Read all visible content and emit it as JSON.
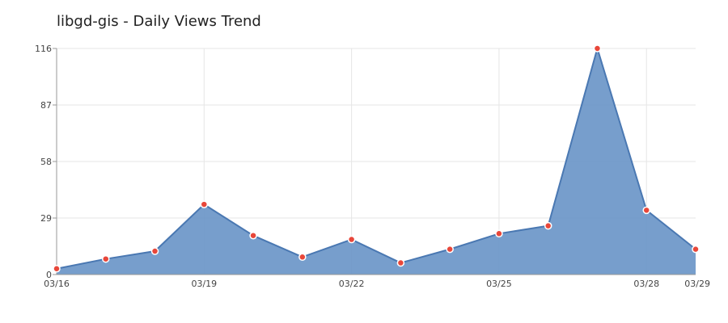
{
  "chart_data": {
    "type": "area",
    "title": "libgd-gis - Daily Views Trend",
    "xlabel": "",
    "ylabel": "",
    "x": [
      "03/16",
      "03/17",
      "03/18",
      "03/19",
      "03/20",
      "03/21",
      "03/22",
      "03/23",
      "03/24",
      "03/25",
      "03/26",
      "03/27",
      "03/28",
      "03/29"
    ],
    "x_tick_labels": [
      "03/16",
      "03/19",
      "03/22",
      "03/25",
      "03/28",
      "03/29"
    ],
    "y_tick_labels": [
      0,
      29,
      58,
      87,
      116
    ],
    "series": [
      {
        "values": [
          3,
          8,
          12,
          36,
          20,
          9,
          18,
          6,
          13,
          21,
          25,
          116,
          33,
          13
        ]
      }
    ],
    "ylim": [
      0,
      116
    ],
    "grid": true,
    "legend": "none",
    "colors": {
      "area": "#6b96c8",
      "line": "#4a78b2",
      "marker": "#e8473a",
      "grid": "#e6e6e6",
      "axis": "#999999"
    }
  }
}
